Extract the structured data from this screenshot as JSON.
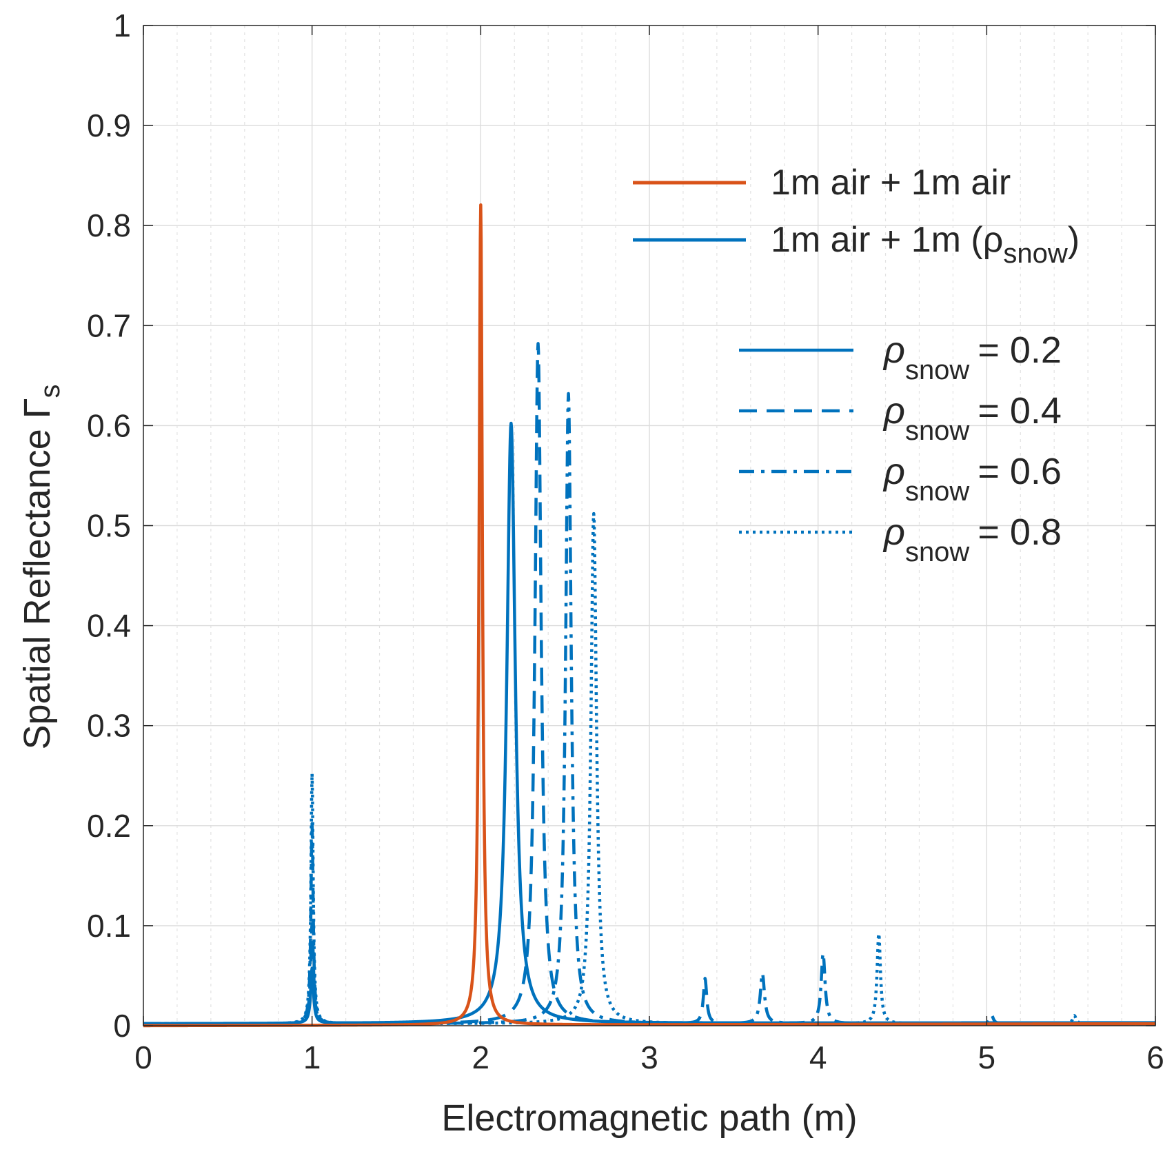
{
  "chart_data": {
    "type": "line",
    "title": "",
    "xlabel": "Electromagnetic path (m)",
    "ylabel": "Spatial Reflectance Γ",
    "ylabel_sub": "s",
    "xlim": [
      0,
      6
    ],
    "ylim": [
      0,
      1
    ],
    "xticks": [
      0,
      1,
      2,
      3,
      4,
      5,
      6
    ],
    "yticks": [
      0,
      0.1,
      0.2,
      0.3,
      0.4,
      0.5,
      0.6,
      0.7,
      0.8,
      0.9,
      1
    ],
    "xtick_labels": [
      "0",
      "1",
      "2",
      "3",
      "4",
      "5",
      "6"
    ],
    "ytick_labels": [
      "0",
      "0.1",
      "0.2",
      "0.3",
      "0.4",
      "0.5",
      "0.6",
      "0.7",
      "0.8",
      "0.9",
      "1"
    ],
    "x_minor_step": 0.2,
    "grid": true,
    "colors": {
      "air": "#d95319",
      "snow": "#0072bd",
      "grid": "#dcdcdc",
      "axis": "#262626"
    },
    "legend_main": [
      {
        "label": "1m air + 1m air",
        "series": "air"
      },
      {
        "label": "1m air + 1m (ρ",
        "sub": "snow",
        "suffix": ")",
        "series": "snow"
      }
    ],
    "legend_density": [
      {
        "symbol": "ρ",
        "sub": "snow",
        "label": "= 0.2",
        "style": "solid"
      },
      {
        "symbol": "ρ",
        "sub": "snow",
        "label": "= 0.4",
        "style": "dashed"
      },
      {
        "symbol": "ρ",
        "sub": "snow",
        "label": "= 0.6",
        "style": "dashdot"
      },
      {
        "symbol": "ρ",
        "sub": "snow",
        "label": "= 0.8",
        "style": "dotted"
      }
    ],
    "series": [
      {
        "name": "1m air + 1m air",
        "color": "air",
        "style": "solid",
        "base": 0.0,
        "rampTo": 0.002,
        "peaks": [
          {
            "x": 2.0,
            "height": 0.82,
            "width": 0.012
          }
        ]
      },
      {
        "name": "rho_snow = 0.2",
        "color": "snow",
        "style": "solid",
        "base": 0.002,
        "rampTo": 0.003,
        "peaks": [
          {
            "x": 1.0,
            "height": 0.055,
            "width": 0.01
          },
          {
            "x": 2.18,
            "height": 0.6,
            "width": 0.03
          }
        ]
      },
      {
        "name": "rho_snow = 0.4",
        "color": "snow",
        "style": "dashed",
        "base": 0.002,
        "rampTo": 0.002,
        "peaks": [
          {
            "x": 1.0,
            "height": 0.1,
            "width": 0.01
          },
          {
            "x": 2.34,
            "height": 0.68,
            "width": 0.022
          },
          {
            "x": 3.33,
            "height": 0.045,
            "width": 0.012
          }
        ]
      },
      {
        "name": "rho_snow = 0.6",
        "color": "snow",
        "style": "dashdot",
        "base": 0.002,
        "rampTo": 0.002,
        "peaks": [
          {
            "x": 1.0,
            "height": 0.2,
            "width": 0.008
          },
          {
            "x": 2.52,
            "height": 0.63,
            "width": 0.02
          },
          {
            "x": 3.67,
            "height": 0.05,
            "width": 0.015
          },
          {
            "x": 4.03,
            "height": 0.07,
            "width": 0.014
          },
          {
            "x": 5.03,
            "height": 0.008,
            "width": 0.012
          }
        ]
      },
      {
        "name": "rho_snow = 0.8",
        "color": "snow",
        "style": "dotted",
        "base": 0.002,
        "rampTo": 0.002,
        "peaks": [
          {
            "x": 1.0,
            "height": 0.25,
            "width": 0.008
          },
          {
            "x": 2.67,
            "height": 0.51,
            "width": 0.02
          },
          {
            "x": 4.36,
            "height": 0.09,
            "width": 0.012
          },
          {
            "x": 5.52,
            "height": 0.008,
            "width": 0.012
          }
        ]
      }
    ]
  }
}
